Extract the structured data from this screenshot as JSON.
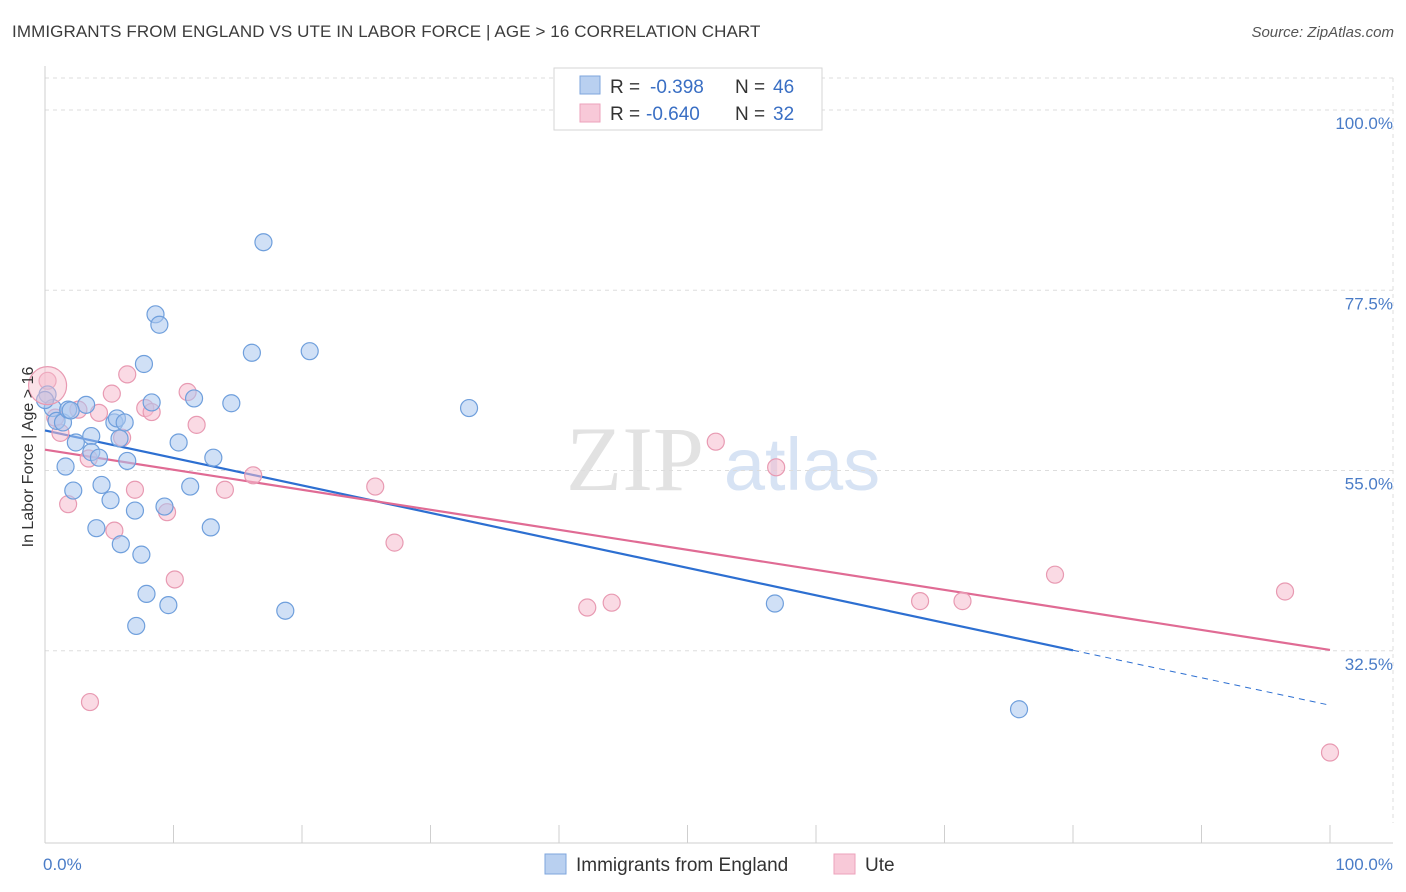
{
  "title": "IMMIGRANTS FROM ENGLAND VS UTE IN LABOR FORCE | AGE > 16 CORRELATION CHART",
  "source": "Source: ZipAtlas.com",
  "colors": {
    "england_fill": "#a9c6ee",
    "england_stroke": "#6f9fdc",
    "england_line": "#2d6fd1",
    "ute_fill": "#f6bccd",
    "ute_stroke": "#e89ab2",
    "ute_line": "#e06b94",
    "grid": "#dddddd",
    "axis_text": "#4a7cc7"
  },
  "legend": {
    "r_label": "R =",
    "n_label": "N =",
    "england": {
      "r": "-0.398",
      "n": "46"
    },
    "ute": {
      "r": "-0.640",
      "n": "32"
    }
  },
  "watermark": {
    "zip": "ZIP",
    "atlas": "atlas"
  },
  "chart_data": {
    "type": "scatter",
    "title": "IMMIGRANTS FROM ENGLAND VS UTE IN LABOR FORCE | AGE > 16 CORRELATION CHART",
    "xlabel": "",
    "ylabel": "In Labor Force | Age > 16",
    "xlim": [
      0,
      100
    ],
    "ylim": [
      11,
      104
    ],
    "x_tick_labels": [
      "0.0%",
      "100.0%"
    ],
    "y_ticks": [
      100.0,
      77.5,
      55.0,
      32.5
    ],
    "y_tick_labels": [
      "100.0%",
      "77.5%",
      "55.0%",
      "32.5%"
    ],
    "series": [
      {
        "name": "Immigrants from England",
        "key": "england",
        "points": [
          [
            0.2,
            64.5
          ],
          [
            0.6,
            62.8
          ],
          [
            0.9,
            61.2
          ],
          [
            1.4,
            61.0
          ],
          [
            1.8,
            62.6
          ],
          [
            1.6,
            55.5
          ],
          [
            2.2,
            52.5
          ],
          [
            2.4,
            58.5
          ],
          [
            3.2,
            63.2
          ],
          [
            3.6,
            59.3
          ],
          [
            3.6,
            57.3
          ],
          [
            4.2,
            56.6
          ],
          [
            4.4,
            53.2
          ],
          [
            4.0,
            47.8
          ],
          [
            5.1,
            51.3
          ],
          [
            5.4,
            61.0
          ],
          [
            5.6,
            61.5
          ],
          [
            5.8,
            59.0
          ],
          [
            6.2,
            61.0
          ],
          [
            6.4,
            56.2
          ],
          [
            7.0,
            50.0
          ],
          [
            7.5,
            44.5
          ],
          [
            5.9,
            45.8
          ],
          [
            7.7,
            68.3
          ],
          [
            8.3,
            63.5
          ],
          [
            8.6,
            74.5
          ],
          [
            8.9,
            73.2
          ],
          [
            9.3,
            50.5
          ],
          [
            9.6,
            38.2
          ],
          [
            7.9,
            39.6
          ],
          [
            7.1,
            35.6
          ],
          [
            10.4,
            58.5
          ],
          [
            11.3,
            53.0
          ],
          [
            11.6,
            64.0
          ],
          [
            12.9,
            47.9
          ],
          [
            13.1,
            56.6
          ],
          [
            14.5,
            63.4
          ],
          [
            16.1,
            69.7
          ],
          [
            17.0,
            83.5
          ],
          [
            18.7,
            37.5
          ],
          [
            20.6,
            69.9
          ],
          [
            33.0,
            62.8
          ],
          [
            56.8,
            38.4
          ],
          [
            75.8,
            25.2
          ],
          [
            0.0,
            63.8
          ],
          [
            2.0,
            62.5
          ]
        ]
      },
      {
        "name": "Ute",
        "key": "ute",
        "points": [
          [
            0.2,
            66.2
          ],
          [
            0.8,
            61.6
          ],
          [
            1.2,
            59.7
          ],
          [
            1.8,
            50.8
          ],
          [
            2.6,
            62.6
          ],
          [
            3.4,
            56.5
          ],
          [
            3.5,
            26.1
          ],
          [
            4.2,
            62.2
          ],
          [
            5.2,
            64.6
          ],
          [
            5.4,
            47.5
          ],
          [
            6.0,
            59.1
          ],
          [
            6.4,
            67.0
          ],
          [
            7.0,
            52.6
          ],
          [
            7.8,
            62.8
          ],
          [
            8.3,
            62.3
          ],
          [
            9.5,
            49.8
          ],
          [
            10.1,
            41.4
          ],
          [
            11.1,
            64.8
          ],
          [
            11.8,
            60.7
          ],
          [
            14.0,
            52.6
          ],
          [
            16.2,
            54.4
          ],
          [
            25.7,
            53.0
          ],
          [
            27.2,
            46.0
          ],
          [
            42.2,
            37.9
          ],
          [
            44.1,
            38.5
          ],
          [
            52.2,
            58.6
          ],
          [
            56.9,
            55.4
          ],
          [
            68.1,
            38.7
          ],
          [
            71.4,
            38.7
          ],
          [
            78.6,
            42.0
          ],
          [
            96.5,
            39.9
          ],
          [
            100.0,
            19.8
          ]
        ]
      }
    ],
    "trendlines": [
      {
        "series": "Immigrants from England",
        "x_start": 0,
        "y_start": 60.0,
        "x_solid_end": 80,
        "x_dashed_end": 100,
        "y_end": 25.7
      },
      {
        "series": "Ute",
        "x_start": 0,
        "y_start": 57.6,
        "x_end": 100,
        "y_end": 32.6
      }
    ]
  },
  "bottom_legend": {
    "england_label": "Immigrants from England",
    "ute_label": "Ute"
  }
}
